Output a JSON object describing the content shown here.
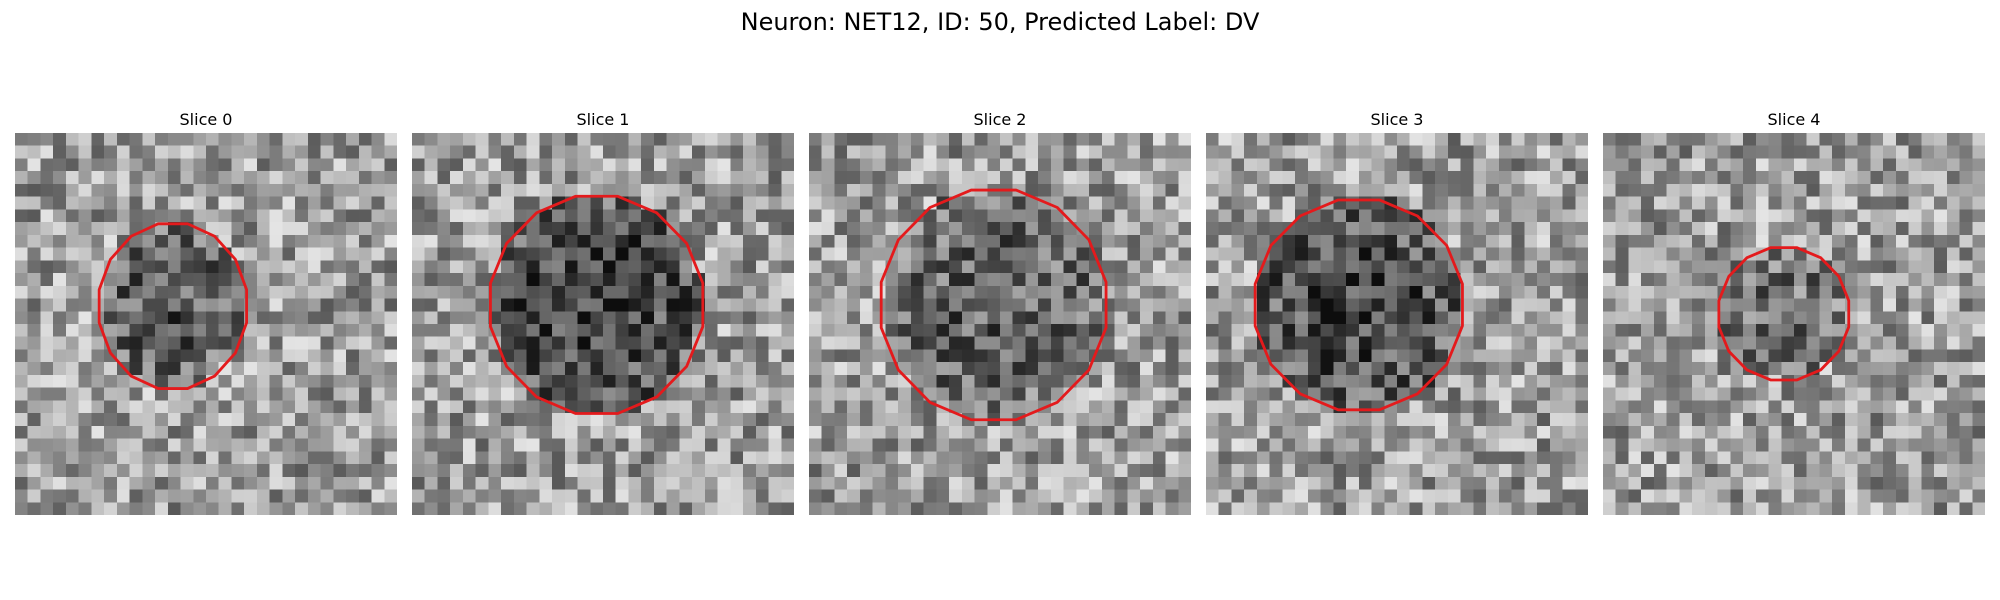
{
  "figure": {
    "title": "Neuron: NET12, ID: 50, Predicted Label: DV"
  },
  "panels": [
    {
      "title": "Slice 0",
      "outline_center": [
        12.4,
        13.6
      ],
      "outline_radius": [
        5.9,
        6.6
      ],
      "blob_darkness": 0.55,
      "seed": 11
    },
    {
      "title": "Slice 1",
      "outline_center": [
        14.5,
        13.5
      ],
      "outline_radius": [
        8.5,
        8.7
      ],
      "blob_darkness": 0.75,
      "seed": 23
    },
    {
      "title": "Slice 2",
      "outline_center": [
        14.5,
        13.5
      ],
      "outline_radius": [
        9.0,
        9.2
      ],
      "blob_darkness": 0.5,
      "seed": 37
    },
    {
      "title": "Slice 3",
      "outline_center": [
        12.0,
        13.5
      ],
      "outline_radius": [
        8.3,
        8.4
      ],
      "blob_darkness": 0.72,
      "seed": 41
    },
    {
      "title": "Slice 4",
      "outline_center": [
        14.2,
        14.2
      ],
      "outline_radius": [
        5.2,
        5.3
      ],
      "blob_darkness": 0.38,
      "seed": 53
    }
  ],
  "colors": {
    "outline": "#e41a1c"
  }
}
